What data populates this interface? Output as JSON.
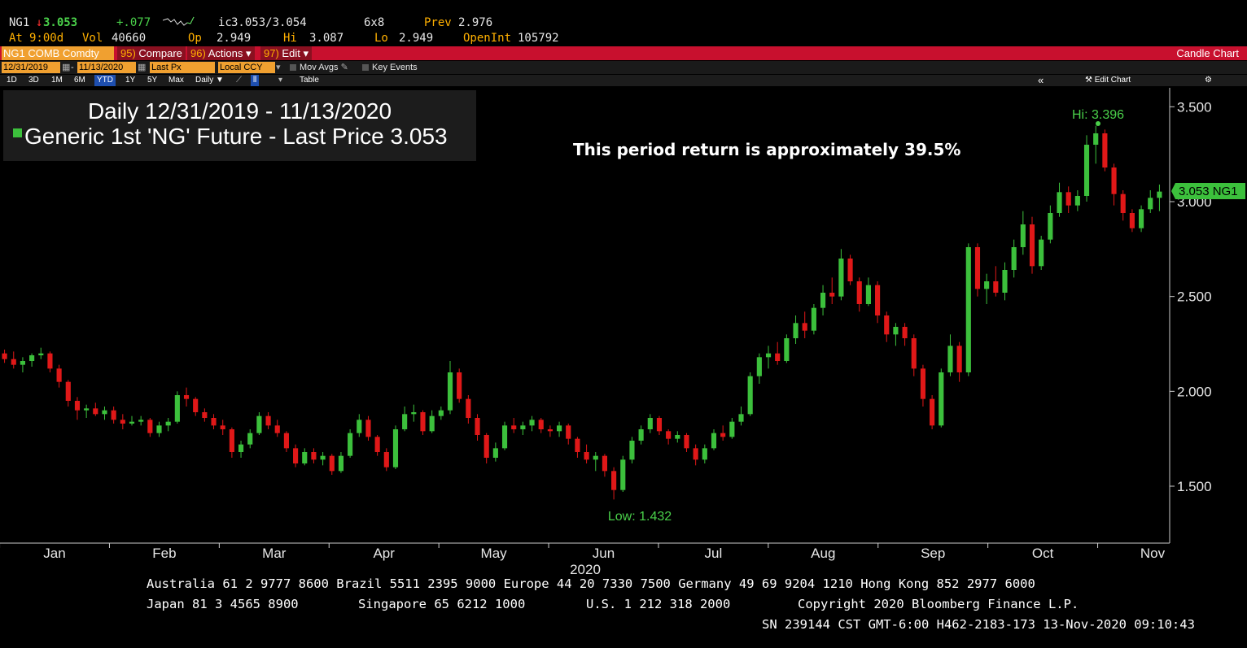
{
  "quote": {
    "ticker": "NG1",
    "last": "3.053",
    "change": "+.077",
    "ic_label": "ic",
    "bid_ask": "3.053/3.054",
    "size": "6x8",
    "prev_label": "Prev",
    "prev": "2.976",
    "at_label": "At",
    "at_time": "9:00d",
    "vol_label": "Vol",
    "vol": "40660",
    "op_label": "Op",
    "op": "2.949",
    "hi_label": "Hi",
    "hi": "3.087",
    "lo_label": "Lo",
    "lo": "2.949",
    "oi_label": "OpenInt",
    "oi": "105792"
  },
  "titlebar": {
    "security": "NG1 COMB Comdty",
    "compare_num": "95)",
    "compare": "Compare",
    "actions_num": "96)",
    "actions": "Actions",
    "edit_num": "97)",
    "edit": "Edit",
    "chart_type": "Candle Chart"
  },
  "params": {
    "start": "12/31/2019",
    "end": "11/13/2020",
    "field": "Last Px",
    "currency": "Local CCY",
    "mov_avgs": "Mov Avgs",
    "key_events": "Key Events"
  },
  "rangebar": {
    "ranges": [
      "1D",
      "3D",
      "1M",
      "6M",
      "YTD",
      "1Y",
      "5Y",
      "Max"
    ],
    "selected": "YTD",
    "period": "Daily",
    "table": "Table",
    "edit_chart": "Edit Chart"
  },
  "legend": {
    "line1": "Daily 12/31/2019 - 11/13/2020",
    "line2": "Generic 1st 'NG' Future - Last Price",
    "last": "3.053"
  },
  "annotation": "This period return is approximately 39.5%",
  "colors": {
    "up": "#3cc03c",
    "down": "#e01818",
    "accent": "#ffb000",
    "titlebar": "#c8102e"
  },
  "chart_data": {
    "type": "candlestick",
    "ylim": [
      1.2,
      3.6
    ],
    "yticks": [
      1.5,
      2.0,
      2.5,
      3.0,
      3.5
    ],
    "ytick_labels": [
      "1.500",
      "2.000",
      "2.500",
      "3.000",
      "3.500"
    ],
    "x_month_labels": [
      "Jan",
      "Feb",
      "Mar",
      "Apr",
      "May",
      "Jun",
      "Jul",
      "Aug",
      "Sep",
      "Oct",
      "Nov"
    ],
    "x_year_label": "2020",
    "hi_label": "Hi: 3.396",
    "low_label": "Low: 1.432",
    "last_label": "3.053 NG1",
    "weekly_closes": [
      2.17,
      2.13,
      2.19,
      1.9,
      1.88,
      1.82,
      1.84,
      1.85,
      1.78,
      1.96,
      1.85,
      1.8,
      1.68,
      1.87,
      1.78,
      1.62,
      1.66,
      1.58,
      1.75,
      1.85,
      1.68,
      1.6,
      1.86,
      1.89,
      1.79,
      1.89,
      2.08,
      1.86,
      1.67,
      1.75,
      1.84,
      1.79,
      1.76,
      1.68,
      1.71,
      1.86,
      1.75,
      1.82,
      1.71,
      1.66,
      1.63,
      1.61,
      1.52,
      1.73,
      1.76,
      1.79,
      1.9,
      2.12,
      1.86,
      1.69,
      1.74,
      1.73,
      1.82,
      1.82,
      1.63,
      1.65,
      1.63,
      1.51,
      1.75,
      1.84,
      1.84,
      1.71,
      1.75,
      1.65,
      1.74,
      1.83,
      1.84,
      2.14,
      2.18,
      2.21,
      2.33,
      2.38,
      2.5,
      2.55,
      2.72,
      2.45,
      2.3,
      2.2,
      2.2,
      1.88,
      2.01,
      2.19,
      2.65,
      2.59,
      2.64,
      2.7,
      2.8,
      2.75,
      3.03,
      3.14,
      2.97,
      3.3,
      3.08,
      2.9,
      3.01,
      3.05
    ],
    "daily_candles": [
      [
        2.2,
        2.22,
        2.15,
        2.17
      ],
      [
        2.17,
        2.21,
        2.12,
        2.14
      ],
      [
        2.14,
        2.18,
        2.1,
        2.16
      ],
      [
        2.16,
        2.2,
        2.13,
        2.19
      ],
      [
        2.19,
        2.23,
        2.17,
        2.2
      ],
      [
        2.2,
        2.21,
        2.1,
        2.12
      ],
      [
        2.12,
        2.14,
        2.02,
        2.05
      ],
      [
        2.05,
        2.06,
        1.92,
        1.95
      ],
      [
        1.95,
        1.97,
        1.85,
        1.9
      ],
      [
        1.9,
        1.93,
        1.86,
        1.91
      ],
      [
        1.91,
        1.94,
        1.87,
        1.88
      ],
      [
        1.88,
        1.92,
        1.85,
        1.9
      ],
      [
        1.9,
        1.92,
        1.83,
        1.85
      ],
      [
        1.85,
        1.88,
        1.8,
        1.83
      ],
      [
        1.83,
        1.87,
        1.82,
        1.84
      ],
      [
        1.84,
        1.87,
        1.82,
        1.85
      ],
      [
        1.85,
        1.86,
        1.76,
        1.78
      ],
      [
        1.78,
        1.84,
        1.76,
        1.82
      ],
      [
        1.82,
        1.86,
        1.79,
        1.84
      ],
      [
        1.84,
        2.0,
        1.83,
        1.98
      ],
      [
        1.98,
        2.02,
        1.92,
        1.96
      ],
      [
        1.96,
        1.97,
        1.87,
        1.89
      ],
      [
        1.89,
        1.91,
        1.84,
        1.86
      ],
      [
        1.86,
        1.88,
        1.8,
        1.82
      ],
      [
        1.82,
        1.85,
        1.77,
        1.8
      ],
      [
        1.8,
        1.81,
        1.65,
        1.68
      ],
      [
        1.68,
        1.74,
        1.65,
        1.72
      ],
      [
        1.72,
        1.8,
        1.7,
        1.78
      ],
      [
        1.78,
        1.89,
        1.77,
        1.87
      ],
      [
        1.87,
        1.89,
        1.8,
        1.82
      ],
      [
        1.82,
        1.85,
        1.76,
        1.78
      ],
      [
        1.78,
        1.79,
        1.68,
        1.7
      ],
      [
        1.7,
        1.72,
        1.6,
        1.62
      ],
      [
        1.62,
        1.7,
        1.61,
        1.68
      ],
      [
        1.68,
        1.7,
        1.62,
        1.64
      ],
      [
        1.64,
        1.68,
        1.61,
        1.66
      ],
      [
        1.66,
        1.67,
        1.56,
        1.58
      ],
      [
        1.58,
        1.68,
        1.57,
        1.66
      ],
      [
        1.66,
        1.8,
        1.65,
        1.78
      ],
      [
        1.78,
        1.88,
        1.76,
        1.85
      ],
      [
        1.85,
        1.87,
        1.74,
        1.76
      ],
      [
        1.76,
        1.77,
        1.66,
        1.68
      ],
      [
        1.68,
        1.7,
        1.58,
        1.6
      ],
      [
        1.6,
        1.82,
        1.59,
        1.8
      ],
      [
        1.8,
        1.92,
        1.79,
        1.88
      ],
      [
        1.88,
        1.93,
        1.84,
        1.89
      ],
      [
        1.89,
        1.9,
        1.77,
        1.79
      ],
      [
        1.79,
        1.9,
        1.78,
        1.87
      ],
      [
        1.87,
        1.92,
        1.85,
        1.9
      ],
      [
        1.9,
        2.16,
        1.88,
        2.1
      ],
      [
        2.1,
        2.12,
        1.94,
        1.96
      ],
      [
        1.96,
        1.98,
        1.83,
        1.86
      ],
      [
        1.86,
        1.88,
        1.74,
        1.77
      ],
      [
        1.77,
        1.78,
        1.62,
        1.65
      ],
      [
        1.65,
        1.73,
        1.63,
        1.7
      ],
      [
        1.7,
        1.84,
        1.69,
        1.82
      ],
      [
        1.82,
        1.86,
        1.78,
        1.8
      ],
      [
        1.8,
        1.84,
        1.77,
        1.82
      ],
      [
        1.82,
        1.87,
        1.79,
        1.85
      ],
      [
        1.85,
        1.86,
        1.78,
        1.8
      ],
      [
        1.8,
        1.82,
        1.76,
        1.79
      ],
      [
        1.79,
        1.84,
        1.76,
        1.82
      ],
      [
        1.82,
        1.83,
        1.72,
        1.75
      ],
      [
        1.75,
        1.76,
        1.65,
        1.68
      ],
      [
        1.68,
        1.72,
        1.62,
        1.64
      ],
      [
        1.64,
        1.68,
        1.58,
        1.66
      ],
      [
        1.66,
        1.67,
        1.55,
        1.58
      ],
      [
        1.58,
        1.6,
        1.43,
        1.48
      ],
      [
        1.48,
        1.66,
        1.47,
        1.64
      ],
      [
        1.64,
        1.76,
        1.62,
        1.74
      ],
      [
        1.74,
        1.82,
        1.72,
        1.8
      ],
      [
        1.8,
        1.88,
        1.78,
        1.86
      ],
      [
        1.86,
        1.87,
        1.77,
        1.79
      ],
      [
        1.79,
        1.8,
        1.72,
        1.75
      ],
      [
        1.75,
        1.79,
        1.73,
        1.77
      ],
      [
        1.77,
        1.78,
        1.68,
        1.7
      ],
      [
        1.7,
        1.72,
        1.61,
        1.64
      ],
      [
        1.64,
        1.72,
        1.62,
        1.7
      ],
      [
        1.7,
        1.8,
        1.69,
        1.78
      ],
      [
        1.78,
        1.82,
        1.74,
        1.76
      ],
      [
        1.76,
        1.86,
        1.75,
        1.84
      ],
      [
        1.84,
        1.92,
        1.82,
        1.88
      ],
      [
        1.88,
        2.1,
        1.87,
        2.08
      ],
      [
        2.08,
        2.2,
        2.04,
        2.18
      ],
      [
        2.18,
        2.24,
        2.12,
        2.2
      ],
      [
        2.2,
        2.26,
        2.14,
        2.16
      ],
      [
        2.16,
        2.3,
        2.15,
        2.28
      ],
      [
        2.28,
        2.4,
        2.25,
        2.36
      ],
      [
        2.36,
        2.42,
        2.28,
        2.32
      ],
      [
        2.32,
        2.46,
        2.3,
        2.44
      ],
      [
        2.44,
        2.56,
        2.4,
        2.52
      ],
      [
        2.52,
        2.6,
        2.46,
        2.5
      ],
      [
        2.5,
        2.75,
        2.48,
        2.7
      ],
      [
        2.7,
        2.72,
        2.56,
        2.58
      ],
      [
        2.58,
        2.6,
        2.42,
        2.46
      ],
      [
        2.46,
        2.6,
        2.45,
        2.56
      ],
      [
        2.56,
        2.58,
        2.36,
        2.4
      ],
      [
        2.4,
        2.42,
        2.26,
        2.3
      ],
      [
        2.3,
        2.36,
        2.24,
        2.34
      ],
      [
        2.34,
        2.36,
        2.24,
        2.28
      ],
      [
        2.28,
        2.3,
        2.08,
        2.12
      ],
      [
        2.12,
        2.14,
        1.92,
        1.96
      ],
      [
        1.96,
        1.98,
        1.8,
        1.82
      ],
      [
        1.82,
        2.12,
        1.81,
        2.1
      ],
      [
        2.1,
        2.3,
        2.08,
        2.24
      ],
      [
        2.24,
        2.26,
        2.05,
        2.1
      ],
      [
        2.1,
        2.78,
        2.08,
        2.76
      ],
      [
        2.76,
        2.78,
        2.5,
        2.54
      ],
      [
        2.54,
        2.62,
        2.46,
        2.58
      ],
      [
        2.58,
        2.66,
        2.5,
        2.52
      ],
      [
        2.52,
        2.68,
        2.48,
        2.64
      ],
      [
        2.64,
        2.8,
        2.6,
        2.76
      ],
      [
        2.76,
        2.95,
        2.72,
        2.88
      ],
      [
        2.88,
        2.92,
        2.62,
        2.66
      ],
      [
        2.66,
        2.82,
        2.64,
        2.8
      ],
      [
        2.8,
        2.98,
        2.78,
        2.94
      ],
      [
        2.94,
        3.1,
        2.92,
        3.05
      ],
      [
        3.05,
        3.08,
        2.94,
        2.98
      ],
      [
        2.98,
        3.06,
        2.95,
        3.03
      ],
      [
        3.03,
        3.35,
        3.0,
        3.3
      ],
      [
        3.3,
        3.4,
        3.2,
        3.36
      ],
      [
        3.36,
        3.38,
        3.16,
        3.18
      ],
      [
        3.18,
        3.2,
        2.98,
        3.04
      ],
      [
        3.04,
        3.06,
        2.9,
        2.94
      ],
      [
        2.94,
        2.96,
        2.84,
        2.86
      ],
      [
        2.86,
        2.98,
        2.84,
        2.96
      ],
      [
        2.96,
        3.06,
        2.94,
        3.02
      ],
      [
        3.02,
        3.09,
        2.95,
        3.053
      ]
    ]
  },
  "footer": {
    "line1": "Australia 61 2 9777 8600 Brazil 5511 2395 9000 Europe 44 20 7330 7500 Germany 49 69 9204 1210 Hong Kong 852 2977 6000",
    "line2a": "Japan 81 3 4565 8900",
    "line2b": "Singapore 65 6212 1000",
    "line2c": "U.S. 1 212 318 2000",
    "line2d": "Copyright 2020 Bloomberg Finance L.P.",
    "line3": "SN 239144 CST  GMT-6:00 H462-2183-173 13-Nov-2020 09:10:43"
  }
}
